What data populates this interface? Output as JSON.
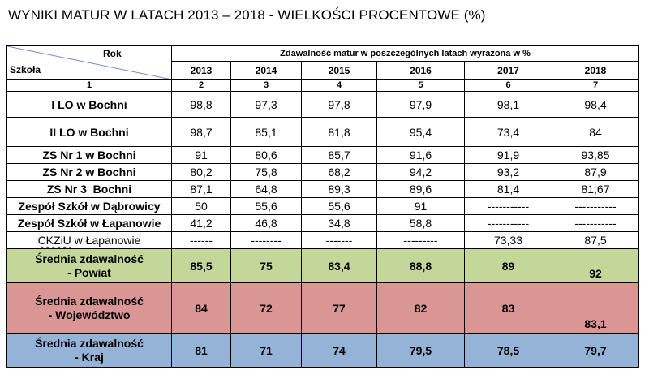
{
  "title": "WYNIKI MATUR W LATACH 2013 – 2018 - WIELKOŚCI PROCENTOWE (%)",
  "header": {
    "rok_label": "Rok",
    "szkola_label": "Szkoła",
    "group_label": "Zdawalność matur w poszczególnych latach wyrażona w %",
    "years": [
      "2013",
      "2014",
      "2015",
      "2016",
      "2017",
      "2018"
    ],
    "column_numbers": [
      "1",
      "2",
      "3",
      "4",
      "5",
      "6",
      "7"
    ]
  },
  "schools": [
    {
      "name": "I LO w Bochni",
      "values": [
        "98,8",
        "97,3",
        "97,8",
        "97,9",
        "98,1",
        "98,4"
      ]
    },
    {
      "name": "II LO w Bochni",
      "values": [
        "98,7",
        "85,1",
        "81,8",
        "95,4",
        "73,4",
        "84"
      ]
    },
    {
      "name": "ZS Nr 1 w Bochni",
      "values": [
        "91",
        "80,6",
        "85,7",
        "91,6",
        "91,9",
        "93,85"
      ]
    },
    {
      "name": "ZS Nr 2 w Bochni",
      "values": [
        "80,2",
        "75,8",
        "68,2",
        "94,2",
        "93,2",
        "87,9"
      ]
    },
    {
      "name": "ZS Nr 3  Bochni",
      "values": [
        "87,1",
        "64,8",
        "89,3",
        "89,6",
        "81,4",
        "81,67"
      ]
    },
    {
      "name": "Zespół Szkół w Dąbrowicy",
      "values": [
        "50",
        "55,6",
        "55,6",
        "91",
        "-----------",
        "-----------"
      ]
    },
    {
      "name": "Zespół Szkół w Łapanowie",
      "values": [
        "41,2",
        "46,8",
        "34,8",
        "58,8",
        "-----------",
        "-----------"
      ]
    },
    {
      "name_a": "CKZiU",
      "name_b": " w Łapanowie",
      "values": [
        "------",
        "--------",
        "-------",
        "---------",
        "73,33",
        "87,5"
      ]
    }
  ],
  "averages": {
    "powiat": {
      "line1": "Średnia zdawalność",
      "line2": "- Powiat",
      "values": [
        "85,5",
        "75",
        "83,4",
        "88,8",
        "89",
        "92"
      ]
    },
    "wojewodztwo": {
      "line1": "Średnia zdawalność",
      "line2": "- Województwo",
      "values": [
        "84",
        "72",
        "77",
        "82",
        "83",
        "83,1"
      ]
    },
    "kraj": {
      "line1": "Średnia zdawalność",
      "line2": "- Kraj",
      "values": [
        "81",
        "71",
        "74",
        "79,5",
        "78,5",
        "79,7"
      ]
    }
  },
  "colors": {
    "powiat": "#c4d79b",
    "wojewodztwo": "#da9694",
    "kraj": "#95b3d7"
  }
}
